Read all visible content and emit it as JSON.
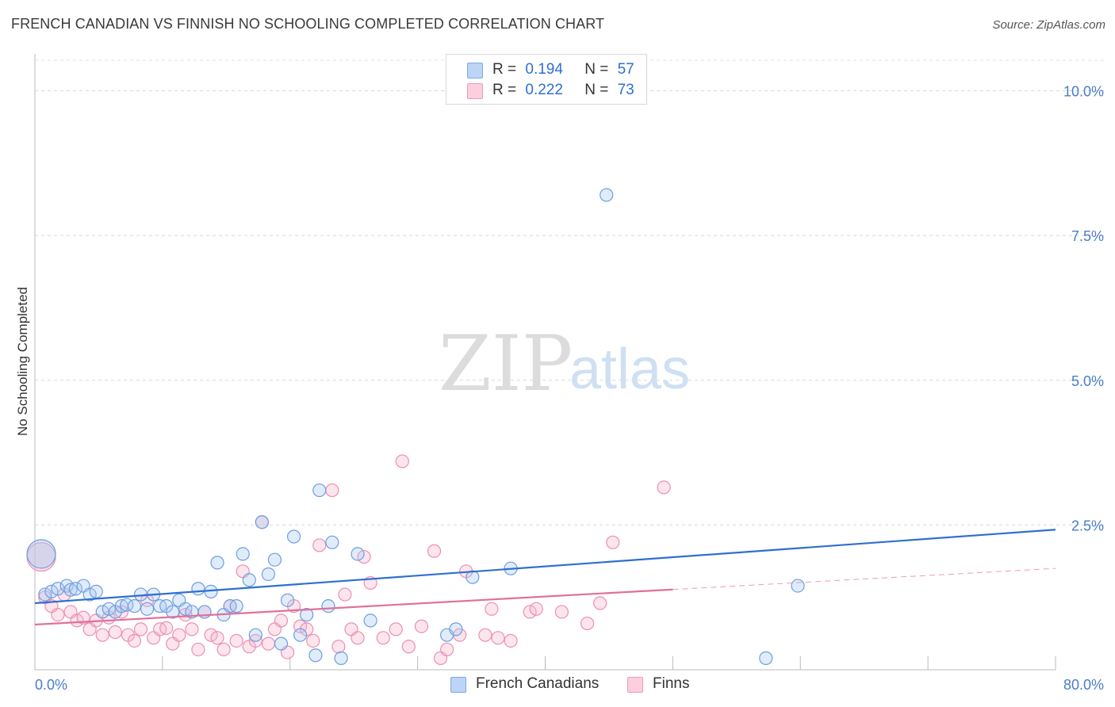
{
  "title": "FRENCH CANADIAN VS FINNISH NO SCHOOLING COMPLETED CORRELATION CHART",
  "source": "Source: ZipAtlas.com",
  "watermark": {
    "zip": "ZIP",
    "atlas": "atlas"
  },
  "legend": {
    "series1": {
      "r_label": "R =",
      "r_value": "0.194",
      "n_label": "N =",
      "n_value": "57"
    },
    "series2": {
      "r_label": "R =",
      "r_value": "0.222",
      "n_label": "N =",
      "n_value": "73"
    }
  },
  "bottom_legend": {
    "series1": "French Canadians",
    "series2": "Finns"
  },
  "chart_data": {
    "type": "scatter",
    "title": "FRENCH CANADIAN VS FINNISH NO SCHOOLING COMPLETED CORRELATION CHART",
    "xlabel": "",
    "ylabel": "No Schooling Completed",
    "xlim": [
      0,
      80
    ],
    "ylim": [
      0,
      10.5
    ],
    "x_tick_labels": [
      "0.0%",
      "80.0%"
    ],
    "y_ticks": [
      2.5,
      5.0,
      7.5,
      10.0
    ],
    "y_tick_labels": [
      "2.5%",
      "5.0%",
      "7.5%",
      "10.0%"
    ],
    "colors": {
      "french": "#7aaae8",
      "finns": "#f19ab8",
      "french_line": "#2f6fd0",
      "finns_line": "#e0709a"
    },
    "series": [
      {
        "name": "French Canadians",
        "r": 0.194,
        "n": 57,
        "trend": {
          "x0": 0,
          "y0": 1.15,
          "x1": 80,
          "y1": 2.42,
          "solid_to": 80
        },
        "points": [
          [
            0.5,
            2.0
          ],
          [
            0.8,
            1.3
          ],
          [
            1.3,
            1.35
          ],
          [
            1.8,
            1.4
          ],
          [
            2.5,
            1.45
          ],
          [
            2.8,
            1.38
          ],
          [
            3.2,
            1.4
          ],
          [
            3.8,
            1.45
          ],
          [
            4.3,
            1.3
          ],
          [
            4.8,
            1.35
          ],
          [
            5.3,
            1.0
          ],
          [
            5.8,
            1.05
          ],
          [
            6.3,
            1.0
          ],
          [
            6.8,
            1.1
          ],
          [
            7.2,
            1.12
          ],
          [
            7.8,
            1.1
          ],
          [
            8.3,
            1.3
          ],
          [
            8.8,
            1.05
          ],
          [
            9.3,
            1.3
          ],
          [
            9.8,
            1.1
          ],
          [
            10.3,
            1.1
          ],
          [
            10.8,
            1.0
          ],
          [
            11.3,
            1.2
          ],
          [
            11.8,
            1.05
          ],
          [
            12.3,
            1.0
          ],
          [
            12.8,
            1.4
          ],
          [
            13.3,
            1.0
          ],
          [
            13.8,
            1.35
          ],
          [
            14.3,
            1.85
          ],
          [
            14.8,
            0.95
          ],
          [
            15.3,
            1.1
          ],
          [
            15.8,
            1.1
          ],
          [
            16.3,
            2.0
          ],
          [
            16.8,
            1.55
          ],
          [
            17.3,
            0.6
          ],
          [
            17.8,
            2.55
          ],
          [
            18.3,
            1.65
          ],
          [
            18.8,
            1.9
          ],
          [
            19.3,
            0.45
          ],
          [
            19.8,
            1.2
          ],
          [
            20.3,
            2.3
          ],
          [
            20.8,
            0.6
          ],
          [
            21.3,
            0.95
          ],
          [
            22.0,
            0.25
          ],
          [
            22.3,
            3.1
          ],
          [
            23.0,
            1.1
          ],
          [
            23.3,
            2.2
          ],
          [
            24.0,
            0.2
          ],
          [
            25.3,
            2.0
          ],
          [
            26.3,
            0.85
          ],
          [
            32.3,
            0.6
          ],
          [
            33.0,
            0.7
          ],
          [
            34.3,
            1.6
          ],
          [
            37.3,
            1.75
          ],
          [
            44.8,
            8.2
          ],
          [
            59.8,
            1.45
          ],
          [
            57.3,
            0.2
          ]
        ]
      },
      {
        "name": "Finns",
        "r": 0.222,
        "n": 73,
        "trend": {
          "x0": 0,
          "y0": 0.78,
          "x1": 80,
          "y1": 1.75,
          "solid_to": 50
        },
        "points": [
          [
            0.5,
            1.95
          ],
          [
            0.8,
            1.25
          ],
          [
            1.3,
            1.1
          ],
          [
            1.8,
            0.95
          ],
          [
            2.3,
            1.3
          ],
          [
            2.8,
            1.0
          ],
          [
            3.3,
            0.85
          ],
          [
            3.8,
            0.9
          ],
          [
            4.3,
            0.7
          ],
          [
            4.8,
            0.85
          ],
          [
            5.3,
            0.6
          ],
          [
            5.8,
            0.9
          ],
          [
            6.3,
            0.65
          ],
          [
            6.8,
            1.0
          ],
          [
            7.3,
            0.6
          ],
          [
            7.8,
            0.5
          ],
          [
            8.3,
            0.7
          ],
          [
            8.8,
            1.2
          ],
          [
            9.3,
            0.55
          ],
          [
            9.8,
            0.7
          ],
          [
            10.3,
            0.72
          ],
          [
            10.8,
            0.45
          ],
          [
            11.3,
            0.6
          ],
          [
            11.8,
            0.95
          ],
          [
            12.3,
            0.7
          ],
          [
            12.8,
            0.35
          ],
          [
            13.3,
            1.0
          ],
          [
            13.8,
            0.6
          ],
          [
            14.3,
            0.55
          ],
          [
            14.8,
            0.35
          ],
          [
            15.3,
            1.1
          ],
          [
            15.8,
            0.5
          ],
          [
            16.3,
            1.7
          ],
          [
            16.8,
            0.4
          ],
          [
            17.3,
            0.5
          ],
          [
            17.8,
            2.55
          ],
          [
            18.3,
            0.45
          ],
          [
            18.8,
            0.7
          ],
          [
            19.3,
            0.85
          ],
          [
            19.8,
            0.3
          ],
          [
            20.3,
            1.1
          ],
          [
            20.8,
            0.75
          ],
          [
            21.3,
            0.7
          ],
          [
            21.8,
            0.5
          ],
          [
            22.3,
            2.15
          ],
          [
            23.3,
            3.1
          ],
          [
            24.3,
            1.3
          ],
          [
            24.8,
            0.7
          ],
          [
            25.3,
            0.55
          ],
          [
            25.8,
            1.95
          ],
          [
            26.3,
            1.5
          ],
          [
            27.3,
            0.55
          ],
          [
            28.3,
            0.7
          ],
          [
            28.8,
            3.6
          ],
          [
            29.3,
            0.4
          ],
          [
            30.3,
            0.75
          ],
          [
            31.3,
            2.05
          ],
          [
            31.8,
            0.2
          ],
          [
            32.3,
            0.35
          ],
          [
            33.3,
            0.6
          ],
          [
            33.8,
            1.7
          ],
          [
            35.3,
            0.6
          ],
          [
            35.8,
            1.05
          ],
          [
            36.3,
            0.55
          ],
          [
            37.3,
            0.5
          ],
          [
            38.8,
            1.0
          ],
          [
            39.3,
            1.05
          ],
          [
            41.3,
            1.0
          ],
          [
            43.3,
            0.8
          ],
          [
            44.3,
            1.15
          ],
          [
            45.3,
            2.2
          ],
          [
            49.3,
            3.15
          ],
          [
            23.8,
            0.4
          ]
        ]
      }
    ]
  }
}
